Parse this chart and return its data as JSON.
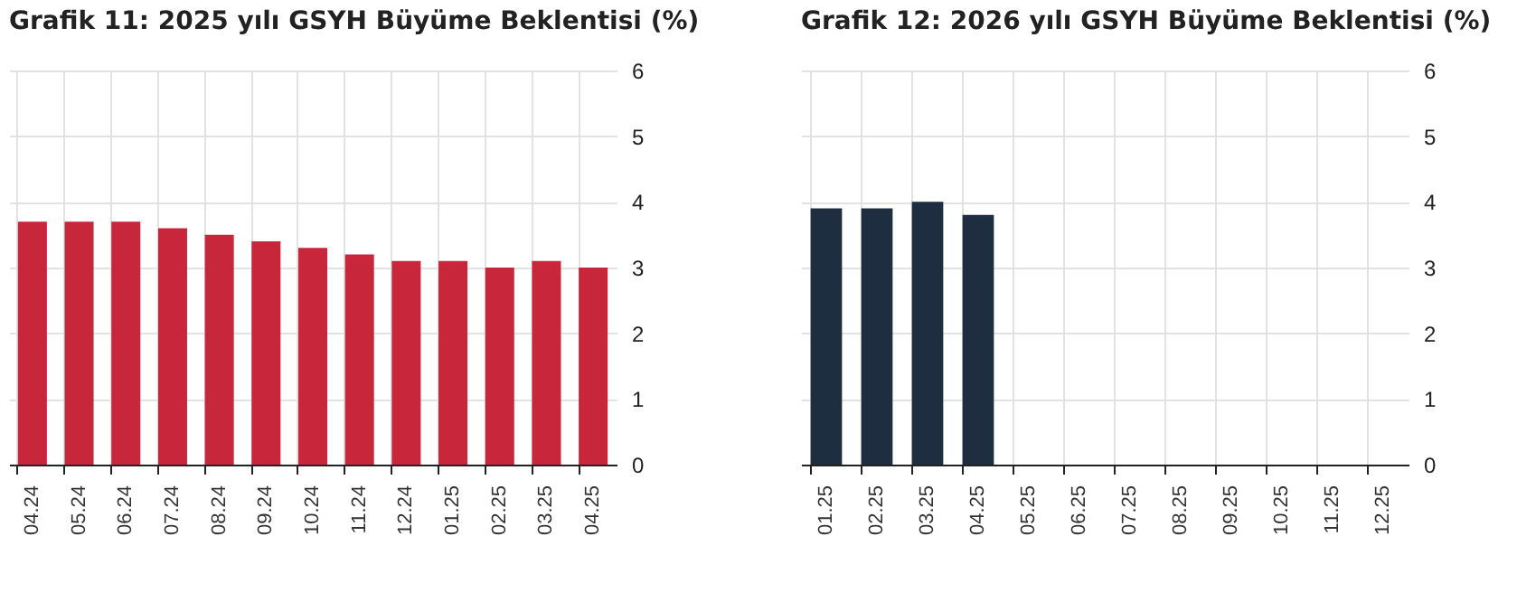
{
  "chart_data": [
    {
      "type": "bar",
      "title": "Grafik 11: 2025 yılı GSYH Büyüme Beklentisi (%)",
      "categories": [
        "04.24",
        "05.24",
        "06.24",
        "07.24",
        "08.24",
        "09.24",
        "10.24",
        "11.24",
        "12.24",
        "01.25",
        "02.25",
        "03.25",
        "04.25"
      ],
      "series": [
        {
          "color": "#c8263a",
          "values": [
            3.7,
            3.7,
            3.7,
            3.6,
            3.5,
            3.4,
            3.3,
            3.2,
            3.1,
            3.1,
            3.0,
            3.1,
            3.0
          ]
        }
      ],
      "ylim": [
        0,
        6
      ],
      "yticks": [
        0,
        1,
        2,
        3,
        4,
        5,
        6
      ],
      "grid": true
    },
    {
      "type": "bar",
      "title": "Grafik 12: 2026 yılı GSYH Büyüme Beklentisi (%)",
      "categories": [
        "01.25",
        "02.25",
        "03.25",
        "04.25",
        "05.25",
        "06.25",
        "07.25",
        "08.25",
        "09.25",
        "10.25",
        "11.25",
        "12.25"
      ],
      "series": [
        {
          "color": "#1f2d40",
          "values": [
            3.9,
            3.9,
            4.0,
            3.8,
            null,
            null,
            null,
            null,
            null,
            null,
            null,
            null
          ]
        }
      ],
      "ylim": [
        0,
        6
      ],
      "yticks": [
        0,
        1,
        2,
        3,
        4,
        5,
        6
      ],
      "grid": true
    }
  ]
}
